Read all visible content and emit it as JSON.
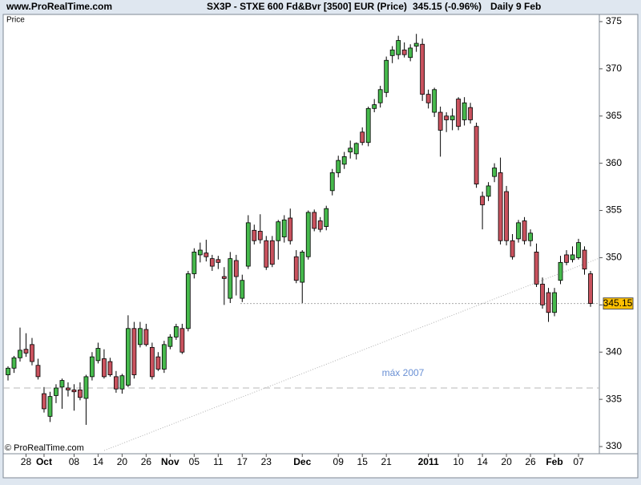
{
  "chart_data": {
    "type": "candlestick",
    "site": "www.ProRealTime.com",
    "title": "SX3P - STXE 600 Fd&Bvr [3500] EUR (Price)",
    "last_change": "345.15 (-0.96%)",
    "period": "Daily  9 Feb",
    "price_label": "Price",
    "copyright": "© ProRealTime.com",
    "up_color": "#46b94c",
    "down_color": "#c9525e",
    "ylim": [
      329.24,
      375.76
    ],
    "yticks": [
      330,
      335,
      340,
      345,
      350,
      355,
      360,
      365,
      370,
      375
    ],
    "last_price": 345.15,
    "reference_lines": [
      {
        "value": 336.2,
        "label": "máx 2007",
        "color": "#6a90d4"
      }
    ],
    "categories": [
      null,
      null,
      null,
      "28",
      null,
      null,
      "Oct",
      null,
      null,
      null,
      null,
      "08",
      null,
      null,
      null,
      "14",
      null,
      null,
      null,
      "20",
      null,
      null,
      null,
      "26",
      null,
      null,
      null,
      "Nov",
      null,
      null,
      null,
      "05",
      null,
      null,
      null,
      "11",
      null,
      null,
      null,
      "17",
      null,
      null,
      null,
      "23",
      null,
      null,
      null,
      null,
      null,
      "Dec",
      null,
      null,
      null,
      null,
      null,
      "09",
      null,
      null,
      null,
      "15",
      null,
      null,
      null,
      "21",
      null,
      null,
      null,
      null,
      null,
      null,
      "2011",
      null,
      null,
      null,
      null,
      "10",
      null,
      null,
      null,
      "14",
      null,
      null,
      null,
      "20",
      null,
      null,
      null,
      "26",
      null,
      null,
      null,
      "Feb",
      null,
      null,
      null,
      "07",
      null,
      null
    ],
    "open": [
      337.6,
      338.3,
      339.4,
      340.3,
      340.8,
      338.6,
      335.6,
      333.2,
      335.4,
      336.3,
      336.2,
      336.0,
      336.0,
      335.1,
      337.4,
      339.1,
      339.3,
      339.0,
      337.4,
      336.1,
      336.5,
      342.5,
      340.8,
      342.4,
      340.5,
      339.5,
      338.2,
      340.6,
      341.6,
      342.5,
      342.5,
      348.3,
      350.3,
      350.5,
      349.9,
      349.8,
      348.0,
      345.7,
      349.7,
      345.7,
      349.1,
      352.9,
      352.8,
      351.8,
      351.8,
      351.8,
      352.2,
      354.2,
      350.1,
      347.4,
      350.1,
      354.8,
      353.9,
      353.3,
      357.1,
      359.0,
      359.9,
      361.2,
      361.0,
      363.3,
      362.2,
      365.8,
      366.4,
      367.5,
      371.4,
      371.5,
      372.0,
      371.2,
      372.4,
      372.6,
      367.3,
      365.4,
      365.4,
      365.0,
      364.6,
      366.8,
      364.6,
      365.9,
      363.9,
      356.5,
      356.5,
      358.6,
      359.0,
      357.0,
      351.8,
      352.0,
      353.9,
      351.8,
      350.6,
      347.2,
      346.3,
      344.2,
      347.6,
      350.3,
      349.8,
      350.0,
      350.8,
      348.3
    ],
    "high": [
      338.5,
      339.6,
      342.6,
      342.0,
      341.5,
      339.3,
      336.3,
      335.8,
      336.6,
      337.2,
      336.8,
      336.6,
      336.8,
      337.6,
      340.0,
      341.0,
      340.3,
      339.4,
      338.0,
      337.7,
      343.9,
      343.2,
      343.2,
      343.0,
      341.0,
      340.0,
      341.2,
      341.9,
      343.0,
      343.0,
      348.6,
      351.0,
      351.6,
      351.9,
      350.3,
      350.2,
      349.0,
      350.6,
      350.3,
      348.2,
      354.5,
      353.5,
      354.6,
      352.3,
      352.3,
      354.0,
      354.5,
      355.2,
      350.8,
      350.8,
      355.0,
      355.1,
      354.3,
      355.5,
      359.4,
      360.8,
      361.2,
      362.4,
      362.2,
      363.8,
      366.0,
      366.8,
      368.2,
      371.3,
      372.4,
      373.5,
      372.8,
      372.6,
      373.7,
      373.2,
      367.8,
      368.0,
      366.0,
      365.4,
      365.8,
      367.0,
      367.0,
      366.4,
      364.3,
      357.0,
      358.0,
      360.0,
      360.6,
      357.6,
      352.5,
      354.0,
      354.3,
      353.0,
      351.5,
      347.9,
      346.8,
      346.8,
      350.2,
      350.8,
      351.2,
      352.0,
      351.2,
      348.6
    ],
    "low": [
      337.0,
      337.8,
      339.0,
      339.5,
      338.6,
      337.1,
      333.6,
      332.6,
      334.6,
      334.0,
      335.3,
      333.8,
      334.9,
      332.3,
      337.0,
      338.8,
      337.2,
      337.4,
      335.7,
      335.6,
      336.3,
      337.2,
      340.5,
      340.6,
      337.1,
      338.0,
      337.8,
      340.3,
      341.3,
      339.8,
      342.2,
      347.8,
      349.5,
      349.6,
      348.6,
      348.8,
      345.0,
      345.2,
      346.0,
      345.3,
      348.8,
      351.4,
      351.5,
      348.7,
      349.0,
      349.8,
      351.6,
      351.4,
      347.3,
      345.2,
      349.8,
      352.8,
      352.7,
      352.9,
      356.6,
      358.5,
      359.4,
      360.5,
      360.4,
      361.9,
      361.8,
      365.4,
      365.9,
      367.0,
      370.6,
      371.0,
      371.2,
      370.8,
      371.8,
      366.6,
      365.8,
      364.9,
      360.7,
      363.3,
      363.5,
      363.5,
      364.0,
      364.2,
      357.4,
      353.0,
      356.0,
      358.0,
      351.4,
      351.3,
      349.8,
      351.6,
      351.4,
      351.2,
      346.9,
      344.6,
      343.2,
      343.8,
      347.2,
      349.2,
      349.5,
      349.8,
      348.2,
      344.8
    ],
    "close": [
      338.3,
      339.4,
      340.2,
      339.9,
      339.0,
      337.4,
      334.0,
      335.3,
      336.2,
      337.0,
      336.0,
      335.8,
      335.2,
      337.4,
      339.5,
      340.4,
      337.4,
      337.6,
      336.1,
      337.5,
      342.5,
      337.6,
      342.5,
      340.8,
      337.4,
      338.2,
      340.8,
      341.6,
      342.7,
      340.0,
      348.3,
      350.6,
      350.8,
      350.1,
      349.1,
      349.5,
      347.8,
      349.9,
      348.0,
      347.6,
      353.7,
      351.8,
      351.9,
      349.0,
      349.3,
      353.8,
      354.0,
      351.8,
      347.6,
      350.6,
      354.8,
      353.1,
      353.0,
      355.2,
      359.0,
      360.3,
      360.7,
      361.6,
      362.1,
      362.2,
      365.8,
      366.2,
      367.8,
      370.9,
      372.0,
      373.0,
      371.5,
      372.2,
      372.7,
      367.3,
      366.4,
      367.8,
      363.5,
      364.6,
      365.0,
      363.9,
      366.4,
      364.6,
      357.8,
      355.6,
      357.6,
      359.5,
      351.8,
      351.8,
      350.1,
      353.7,
      351.8,
      352.6,
      347.2,
      345.0,
      344.2,
      346.3,
      349.5,
      349.5,
      350.3,
      351.6,
      348.8,
      345.15
    ]
  }
}
